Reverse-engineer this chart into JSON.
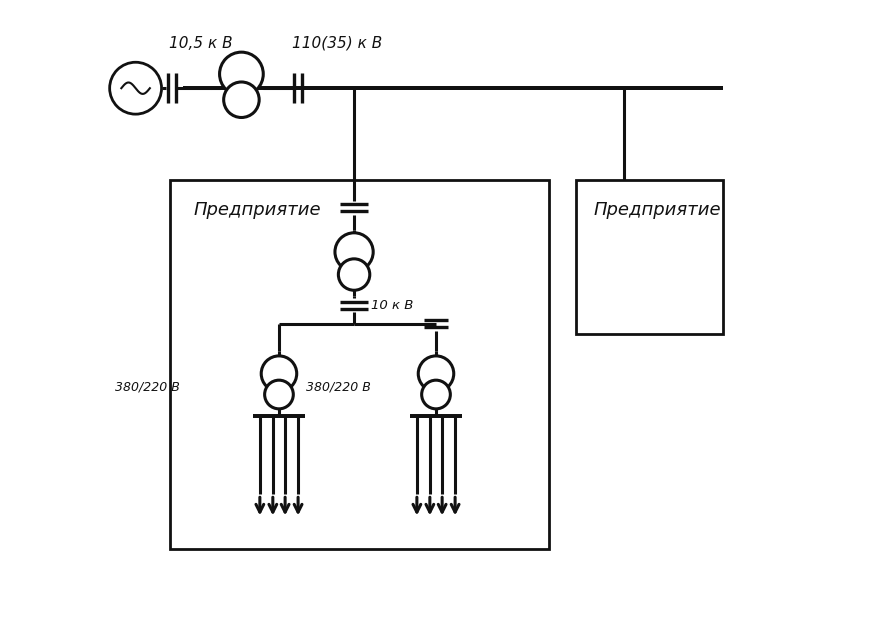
{
  "bg_color": "#ffffff",
  "line_color": "#111111",
  "lw": 2.2,
  "fig_w": 8.72,
  "fig_h": 6.27,
  "label_10_5": "10,5 к В",
  "label_110": "110(35) к В",
  "label_10kv": "10 к В",
  "label_380_1": "380/220 В",
  "label_380_2": "380/220 В",
  "label_pred1": "Предприятие",
  "label_pred2": "Предприятие",
  "xlim": [
    0,
    10
  ],
  "ylim": [
    0,
    9
  ]
}
